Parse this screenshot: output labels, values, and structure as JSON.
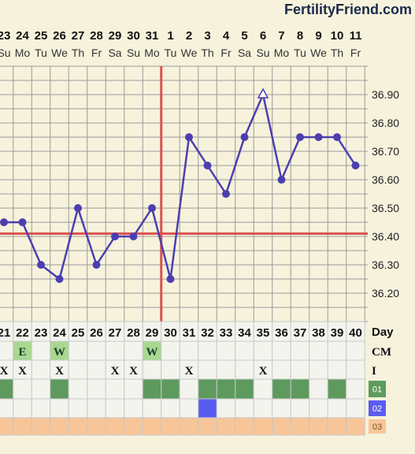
{
  "brand": "FertilityFriend.com",
  "chart_data": {
    "type": "line",
    "dates": [
      "23",
      "24",
      "25",
      "26",
      "27",
      "28",
      "29",
      "30",
      "31",
      "1",
      "2",
      "3",
      "4",
      "5",
      "6",
      "7",
      "8",
      "9",
      "10",
      "11"
    ],
    "weekdays": [
      "Su",
      "Mo",
      "Tu",
      "We",
      "Th",
      "Fr",
      "Sa",
      "Su",
      "Mo",
      "Tu",
      "We",
      "Th",
      "Fr",
      "Sa",
      "Su",
      "Mo",
      "Tu",
      "We",
      "Th",
      "Fr"
    ],
    "cycle_days": [
      "21",
      "22",
      "23",
      "24",
      "25",
      "26",
      "27",
      "28",
      "29",
      "30",
      "31",
      "32",
      "33",
      "34",
      "35",
      "36",
      "37",
      "38",
      "39",
      "40"
    ],
    "temperatures": [
      36.45,
      36.45,
      36.3,
      36.25,
      36.5,
      36.3,
      36.4,
      36.4,
      36.5,
      36.25,
      36.75,
      36.65,
      36.55,
      36.75,
      36.9,
      36.6,
      36.75,
      36.75,
      36.75,
      36.65
    ],
    "open_point_index": 14,
    "y_ticks": [
      "36.90",
      "36.80",
      "36.70",
      "36.60",
      "36.50",
      "36.40",
      "36.30",
      "36.20"
    ],
    "ylim": [
      36.1,
      37.0
    ],
    "coverline": 36.41,
    "ovulation_line_after_index": 8,
    "row_labels": {
      "day": "Day",
      "cm": "CM",
      "i": "I",
      "r1": "01",
      "r2": "02",
      "r3": "03"
    },
    "cm": [
      "",
      "E",
      "",
      "W",
      "",
      "",
      "",
      "",
      "W",
      "",
      "",
      "",
      "",
      "",
      "",
      "",
      "",
      "",
      "",
      ""
    ],
    "intercourse": [
      "X",
      "X",
      "",
      "X",
      "",
      "",
      "X",
      "X",
      "",
      "",
      "X",
      "",
      "",
      "",
      "X",
      "",
      "",
      "",
      "",
      ""
    ],
    "row01": [
      true,
      false,
      false,
      true,
      false,
      false,
      false,
      false,
      true,
      true,
      false,
      true,
      true,
      true,
      false,
      true,
      true,
      false,
      true,
      false
    ],
    "row02": [
      false,
      false,
      false,
      false,
      false,
      false,
      false,
      false,
      false,
      false,
      false,
      true,
      false,
      false,
      false,
      false,
      false,
      false,
      false,
      false
    ],
    "row03": [
      true,
      true,
      true,
      true,
      true,
      true,
      true,
      true,
      true,
      true,
      true,
      true,
      true,
      true,
      true,
      true,
      true,
      true,
      true,
      true
    ],
    "colors": {
      "line": "#4b3fb0",
      "coverline": "#d9534f",
      "ovulation": "#d9534f",
      "grid": "#9a9a9a",
      "chart_bg": "#f7f2dc",
      "cm_bg": "#a8d890",
      "row01": "#5e9a5e",
      "row02": "#5a5cf0",
      "row03": "#f7c597",
      "cell_bg": "#f4f4ee"
    }
  }
}
